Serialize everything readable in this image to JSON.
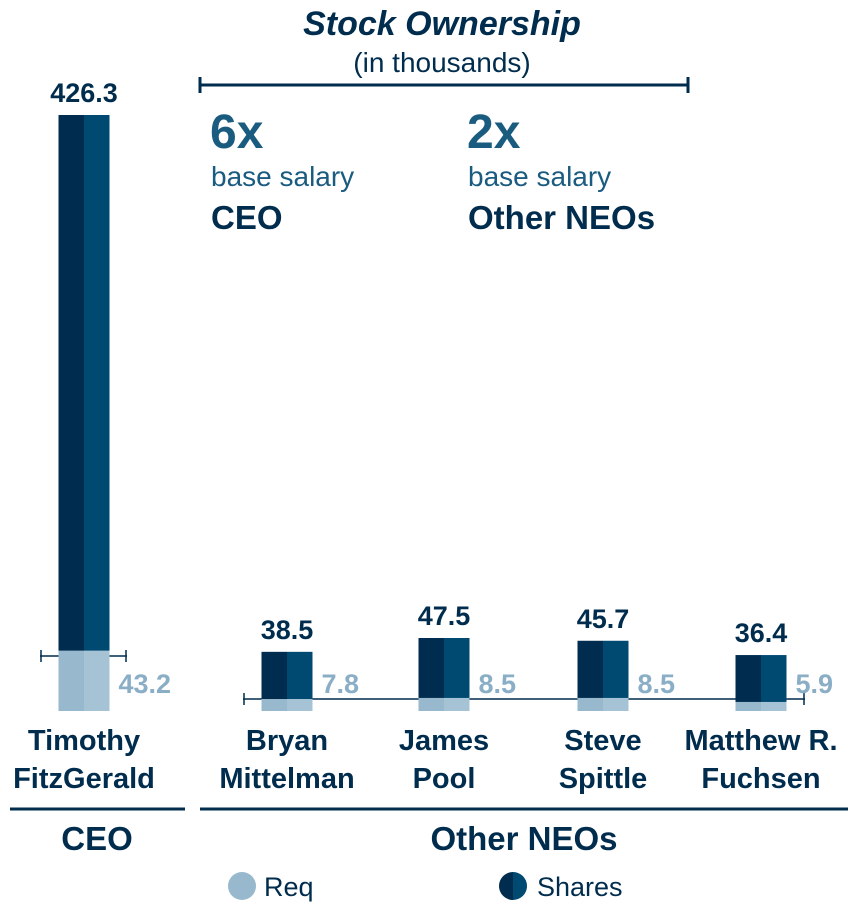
{
  "header": {
    "title": "Stock Ownership",
    "subtitle": "(in thousands)"
  },
  "guidelines": [
    {
      "multiple": "6x",
      "basis": "base salary",
      "group": "CEO"
    },
    {
      "multiple": "2x",
      "basis": "base salary",
      "group": "Other NEOs"
    }
  ],
  "groups": [
    {
      "label": "CEO"
    },
    {
      "label": "Other NEOs"
    }
  ],
  "legend": [
    {
      "label": "Req",
      "color": "#98b8cd"
    },
    {
      "label": "Shares",
      "color": "#004a72"
    }
  ],
  "chart_data": {
    "type": "bar",
    "title": "Stock Ownership",
    "subtitle": "(in thousands)",
    "categories": [
      [
        "Timothy",
        "FitzGerald"
      ],
      [
        "Bryan",
        "Mittelman"
      ],
      [
        "James",
        "Pool"
      ],
      [
        "Steve",
        "Spittle"
      ],
      [
        "Matthew R.",
        "Fuchsen"
      ]
    ],
    "series": [
      {
        "name": "Shares",
        "values": [
          426.3,
          38.5,
          47.5,
          45.7,
          36.4
        ]
      },
      {
        "name": "Req",
        "values": [
          43.2,
          7.8,
          8.5,
          8.5,
          5.9
        ]
      }
    ],
    "scales": {
      "ceo_panel": {
        "categories": [
          "Timothy FitzGerald"
        ],
        "ylim": [
          0,
          426.3
        ]
      },
      "neo_panel": {
        "categories": [
          "Bryan Mittelman",
          "James Pool",
          "Steve Spittle",
          "Matthew R. Fuchsen"
        ],
        "ylim": [
          0,
          47.5
        ]
      }
    },
    "colors": {
      "shares_dark": "#002d4f",
      "shares_light": "#004a72",
      "req": "#98b8cd",
      "req_text": "#8aaec6",
      "text": "#002c4d",
      "accent": "#1a5b80"
    },
    "grid": false,
    "legend_position": "bottom"
  }
}
